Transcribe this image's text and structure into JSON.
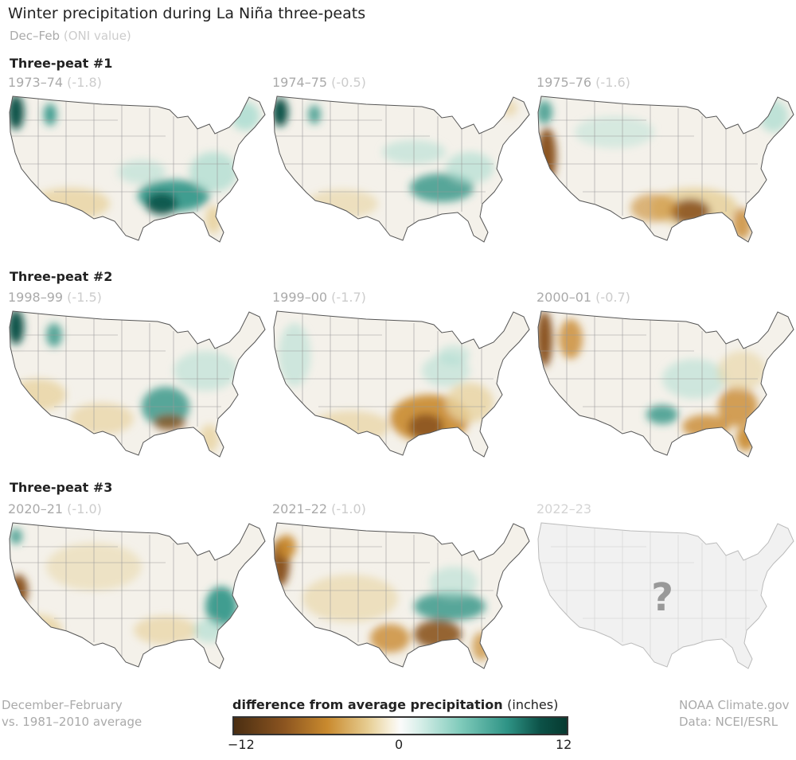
{
  "title": "Winter precipitation during La Niña three-peats",
  "subtitle": {
    "season": "Dec–Feb",
    "oni": "(ONI value)"
  },
  "groups": [
    {
      "label": "Three-peat #1",
      "panels": [
        {
          "years": "1973–74",
          "oni": "(-1.8)"
        },
        {
          "years": "1974–75",
          "oni": "(-0.5)"
        },
        {
          "years": "1975–76",
          "oni": "(-1.6)"
        }
      ]
    },
    {
      "label": "Three-peat #2",
      "panels": [
        {
          "years": "1998–99",
          "oni": "(-1.5)"
        },
        {
          "years": "1999–00",
          "oni": "(-1.7)"
        },
        {
          "years": "2000–01",
          "oni": "(-0.7)"
        }
      ]
    },
    {
      "label": "Three-peat #3",
      "panels": [
        {
          "years": "2020–21",
          "oni": "(-1.0)"
        },
        {
          "years": "2021–22",
          "oni": "(-1.0)"
        },
        {
          "years": "2022–23",
          "oni": "",
          "unknown_mark": "?"
        }
      ]
    }
  ],
  "footer": {
    "left_line1": "December–February",
    "left_line2": "vs. 1981–2010 average",
    "right_line1": "NOAA Climate.gov",
    "right_line2": "Data: NCEI/ESRL"
  },
  "legend": {
    "title": "difference from average precipitation",
    "unit": "(inches)",
    "min": "−12",
    "mid": "0",
    "max": "12",
    "colors": {
      "dry": "#4a2e12",
      "neutral": "#fbfbfb",
      "wet": "#073a30"
    }
  }
}
